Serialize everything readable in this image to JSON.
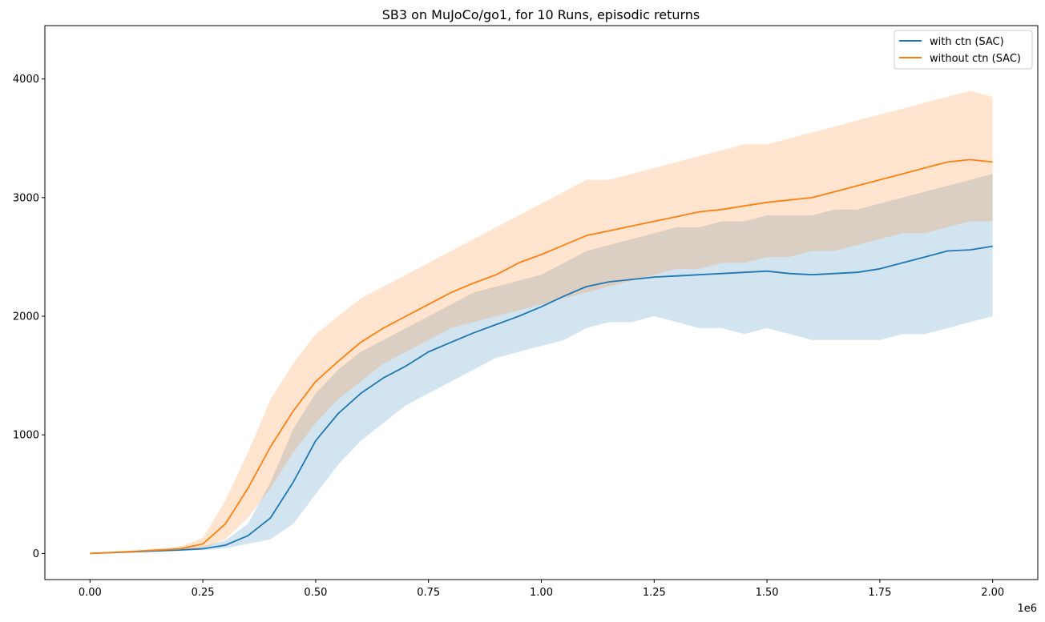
{
  "chart_data": {
    "type": "line",
    "title": "SB3 on MuJoCo/go1, for 10 Runs, episodic returns",
    "xlabel": "",
    "ylabel": "",
    "x_offset_label": "1e6",
    "xlim": [
      -0.1,
      2.1
    ],
    "ylim": [
      -220,
      4450
    ],
    "x_ticks": [
      0.0,
      0.25,
      0.5,
      0.75,
      1.0,
      1.25,
      1.5,
      1.75,
      2.0
    ],
    "x_tick_labels": [
      "0.00",
      "0.25",
      "0.50",
      "0.75",
      "1.00",
      "1.25",
      "1.50",
      "1.75",
      "2.00"
    ],
    "y_ticks": [
      0,
      1000,
      2000,
      3000,
      4000
    ],
    "y_tick_labels": [
      "0",
      "1000",
      "2000",
      "3000",
      "4000"
    ],
    "grid": false,
    "legend_position": "top-right",
    "x": [
      0.0,
      0.1,
      0.2,
      0.25,
      0.3,
      0.35,
      0.4,
      0.45,
      0.5,
      0.55,
      0.6,
      0.65,
      0.7,
      0.75,
      0.8,
      0.85,
      0.9,
      0.95,
      1.0,
      1.05,
      1.1,
      1.15,
      1.2,
      1.25,
      1.3,
      1.35,
      1.4,
      1.45,
      1.5,
      1.55,
      1.6,
      1.65,
      1.7,
      1.75,
      1.8,
      1.85,
      1.9,
      1.95,
      2.0
    ],
    "series": [
      {
        "name": "with ctn (SAC)",
        "color": "#1f77b4",
        "band_color": "#1f77b4",
        "values": [
          0,
          15,
          30,
          40,
          70,
          150,
          300,
          600,
          950,
          1180,
          1350,
          1480,
          1580,
          1700,
          1780,
          1860,
          1930,
          2000,
          2080,
          2170,
          2250,
          2290,
          2310,
          2330,
          2340,
          2350,
          2360,
          2370,
          2380,
          2360,
          2350,
          2360,
          2370,
          2400,
          2450,
          2500,
          2550,
          2560,
          2590
        ],
        "lower": [
          0,
          10,
          20,
          28,
          45,
          80,
          120,
          250,
          500,
          750,
          950,
          1100,
          1250,
          1350,
          1450,
          1550,
          1650,
          1700,
          1750,
          1800,
          1900,
          1950,
          1950,
          2000,
          1950,
          1900,
          1900,
          1850,
          1900,
          1850,
          1800,
          1800,
          1800,
          1800,
          1850,
          1850,
          1900,
          1950,
          2000
        ],
        "upper": [
          0,
          22,
          42,
          60,
          110,
          250,
          600,
          1050,
          1350,
          1550,
          1700,
          1800,
          1900,
          2000,
          2100,
          2200,
          2250,
          2300,
          2350,
          2450,
          2550,
          2600,
          2650,
          2700,
          2750,
          2750,
          2800,
          2800,
          2850,
          2850,
          2850,
          2900,
          2900,
          2950,
          3000,
          3050,
          3100,
          3150,
          3200
        ]
      },
      {
        "name": "without ctn (SAC)",
        "color": "#ff7f0e",
        "band_color": "#ff7f0e",
        "values": [
          0,
          18,
          40,
          80,
          250,
          550,
          900,
          1200,
          1450,
          1620,
          1780,
          1900,
          2000,
          2100,
          2200,
          2280,
          2350,
          2450,
          2520,
          2600,
          2680,
          2720,
          2760,
          2800,
          2840,
          2880,
          2900,
          2930,
          2960,
          2980,
          3000,
          3050,
          3100,
          3150,
          3200,
          3250,
          3300,
          3320,
          3300
        ],
        "lower": [
          0,
          12,
          25,
          45,
          120,
          300,
          550,
          850,
          1100,
          1300,
          1450,
          1600,
          1700,
          1800,
          1900,
          1950,
          2000,
          2050,
          2100,
          2150,
          2200,
          2250,
          2300,
          2350,
          2400,
          2400,
          2450,
          2450,
          2500,
          2500,
          2550,
          2550,
          2600,
          2650,
          2700,
          2700,
          2750,
          2800,
          2800
        ],
        "upper": [
          0,
          25,
          60,
          130,
          450,
          850,
          1300,
          1600,
          1850,
          2000,
          2150,
          2250,
          2350,
          2450,
          2550,
          2650,
          2750,
          2850,
          2950,
          3050,
          3150,
          3150,
          3200,
          3250,
          3300,
          3350,
          3400,
          3450,
          3450,
          3500,
          3550,
          3600,
          3650,
          3700,
          3750,
          3800,
          3850,
          3900,
          3850
        ]
      }
    ]
  }
}
